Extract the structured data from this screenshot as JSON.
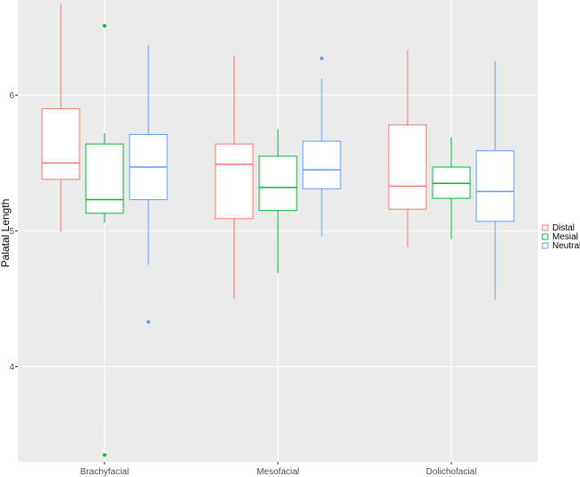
{
  "chart_data": {
    "type": "boxplot",
    "title": "",
    "xlabel": "",
    "ylabel": "Palatal Length",
    "ylim": [
      3.3,
      6.7
    ],
    "yticks": [
      4,
      5,
      6
    ],
    "categories": [
      "Brachyfacial",
      "Mesofacial",
      "Dolichofacial"
    ],
    "grid": true,
    "legend_position": "right",
    "series": [
      {
        "name": "Distal",
        "color": "#F8766D",
        "boxes": [
          {
            "lower_whisker": 4.99,
            "q1": 5.38,
            "median": 5.5,
            "q3": 5.9,
            "upper_whisker": 6.67,
            "outliers": []
          },
          {
            "lower_whisker": 4.5,
            "q1": 5.09,
            "median": 5.49,
            "q3": 5.64,
            "upper_whisker": 6.29,
            "outliers": []
          },
          {
            "lower_whisker": 4.88,
            "q1": 5.16,
            "median": 5.33,
            "q3": 5.78,
            "upper_whisker": 6.33,
            "outliers": []
          }
        ]
      },
      {
        "name": "Mesial",
        "color": "#00BA38",
        "boxes": [
          {
            "lower_whisker": 5.06,
            "q1": 5.13,
            "median": 5.23,
            "q3": 5.64,
            "upper_whisker": 5.72,
            "outliers": [
              6.51,
              3.35
            ]
          },
          {
            "lower_whisker": 4.69,
            "q1": 5.15,
            "median": 5.32,
            "q3": 5.55,
            "upper_whisker": 5.75,
            "outliers": []
          },
          {
            "lower_whisker": 4.94,
            "q1": 5.24,
            "median": 5.35,
            "q3": 5.47,
            "upper_whisker": 5.69,
            "outliers": []
          }
        ]
      },
      {
        "name": "Neutral",
        "color": "#619CFF",
        "boxes": [
          {
            "lower_whisker": 4.75,
            "q1": 5.23,
            "median": 5.47,
            "q3": 5.71,
            "upper_whisker": 6.37,
            "outliers": [
              4.33
            ]
          },
          {
            "lower_whisker": 4.96,
            "q1": 5.31,
            "median": 5.45,
            "q3": 5.66,
            "upper_whisker": 6.12,
            "outliers": [
              6.27
            ]
          },
          {
            "lower_whisker": 4.49,
            "q1": 5.07,
            "median": 5.29,
            "q3": 5.59,
            "upper_whisker": 6.25,
            "outliers": []
          }
        ]
      }
    ]
  }
}
